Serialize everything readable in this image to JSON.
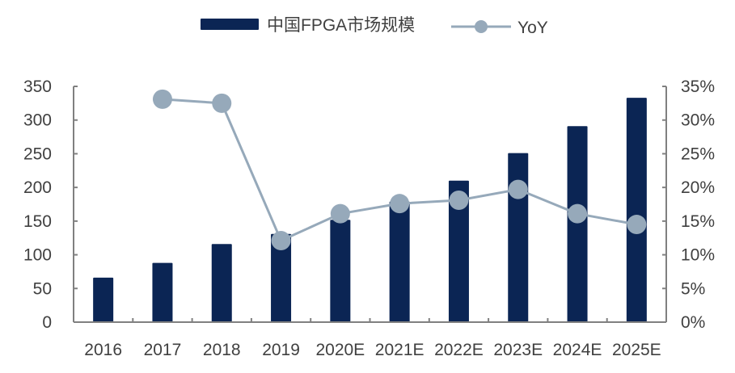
{
  "chart_data": {
    "type": "bar+line",
    "title": "",
    "categories": [
      "2016",
      "2017",
      "2018",
      "2019",
      "2020E",
      "2021E",
      "2022E",
      "2023E",
      "2024E",
      "2025E"
    ],
    "series": [
      {
        "name": "中国FPGA市场规模",
        "type": "bar",
        "axis": "left",
        "color": "#0b2554",
        "values": [
          66,
          88,
          116,
          131,
          152,
          179,
          210,
          251,
          291,
          333
        ]
      },
      {
        "name": "YoY",
        "type": "line",
        "axis": "right",
        "color": "#96a9ba",
        "values": [
          null,
          33.1,
          32.5,
          12.1,
          16.1,
          17.6,
          18.1,
          19.7,
          16.1,
          14.5
        ]
      }
    ],
    "left_axis": {
      "ticks": [
        "0",
        "50",
        "100",
        "150",
        "200",
        "250",
        "300",
        "350"
      ],
      "range": [
        0,
        350
      ],
      "label": ""
    },
    "right_axis": {
      "ticks": [
        "0%",
        "5%",
        "10%",
        "15%",
        "20%",
        "25%",
        "30%",
        "35%"
      ],
      "range": [
        0,
        35
      ],
      "label": ""
    },
    "xlabel": "",
    "grid": false,
    "legend_position": "top"
  },
  "legend": {
    "items": [
      {
        "label": "中国FPGA市场规模",
        "kind": "bar",
        "color": "#0b2554"
      },
      {
        "label": "YoY",
        "kind": "line-marker",
        "color": "#96a9ba"
      }
    ]
  },
  "colors": {
    "axis": "#808080",
    "text": "#404040"
  }
}
